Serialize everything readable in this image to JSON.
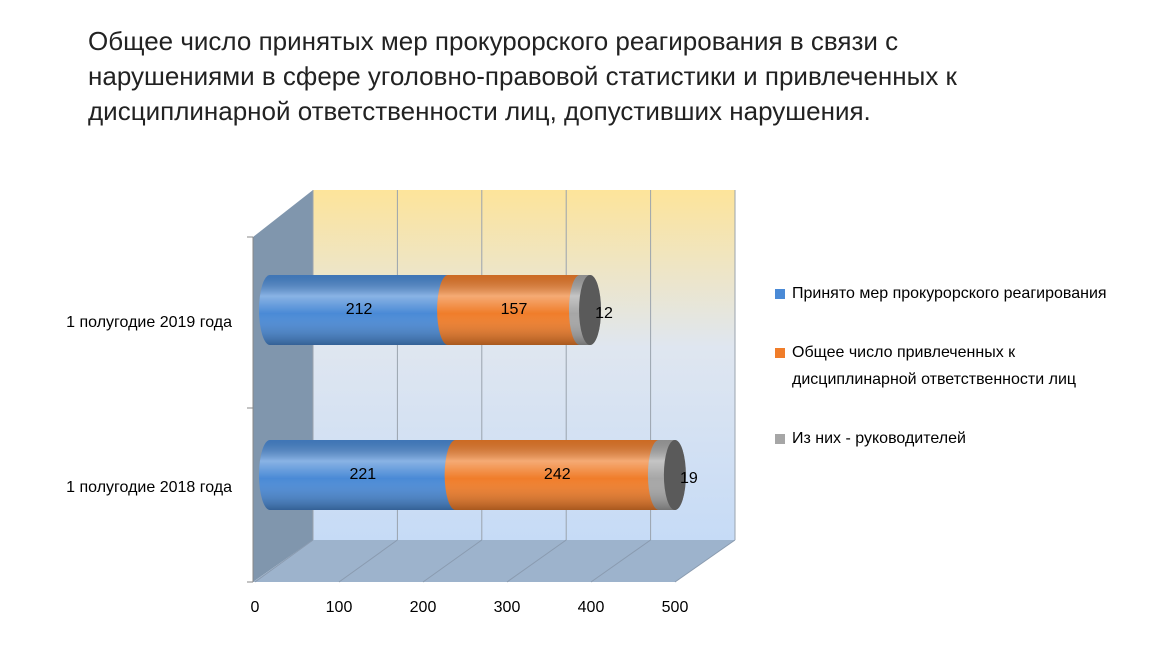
{
  "chart_data": {
    "type": "stacked-bar-horizontal",
    "title": "Общее число принятых мер прокурорского реагирования в связи с нарушениями в сфере уголовно-правовой статистики и привлеченных к дисциплинарной ответственности лиц, допустивших нарушения.",
    "categories": [
      "1 полугодие 2019 года",
      "1 полугодие 2018 года"
    ],
    "series": [
      {
        "name": "Принято мер прокурорского реагирования",
        "color": "#4a8ad6",
        "values": [
          212,
          221
        ]
      },
      {
        "name": "Общее число привлеченных к дисциплинарной ответственности лиц",
        "color": "#f07d2a",
        "values": [
          157,
          242
        ]
      },
      {
        "name": "Из них - руководителей",
        "color": "#a6a6a6",
        "values": [
          12,
          19
        ]
      }
    ],
    "xlim": [
      0,
      500
    ],
    "xticks": [
      0,
      100,
      200,
      300,
      400,
      500
    ],
    "grid": true,
    "legend": "right"
  }
}
